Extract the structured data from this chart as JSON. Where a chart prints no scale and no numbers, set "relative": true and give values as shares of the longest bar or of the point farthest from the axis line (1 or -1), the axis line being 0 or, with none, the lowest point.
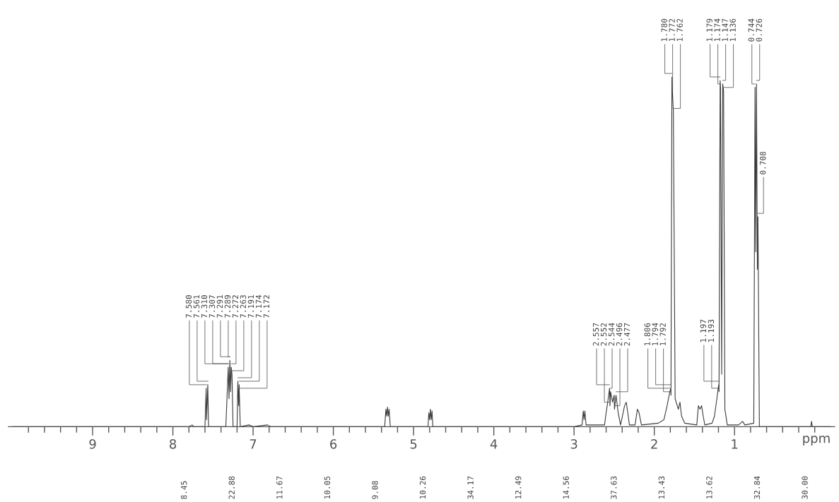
{
  "chart_data": {
    "type": "line",
    "relative": true,
    "xlabel": "ppm",
    "xlim": [
      10.05,
      -0.25
    ],
    "legend": false,
    "marker": "none",
    "line_style": "solid",
    "xticks": [
      {
        "value": 9.8,
        "label": null
      },
      {
        "value": 9.6,
        "label": null
      },
      {
        "value": 9.4,
        "label": null
      },
      {
        "value": 9.2,
        "label": null
      },
      9,
      {
        "value": 8.8,
        "label": null
      },
      {
        "value": 8.6,
        "label": null
      },
      {
        "value": 8.4,
        "label": null
      },
      {
        "value": 8.2,
        "label": null
      },
      8,
      {
        "value": 7.8,
        "label": null
      },
      {
        "value": 7.6,
        "label": null
      },
      {
        "value": 7.4,
        "label": null
      },
      {
        "value": 7.2,
        "label": null
      },
      7,
      {
        "value": 6.8,
        "label": null
      },
      {
        "value": 6.6,
        "label": null
      },
      {
        "value": 6.4,
        "label": null
      },
      {
        "value": 6.2,
        "label": null
      },
      6,
      {
        "value": 5.8,
        "label": null
      },
      {
        "value": 5.6,
        "label": null
      },
      {
        "value": 5.4,
        "label": null
      },
      {
        "value": 5.2,
        "label": null
      },
      5,
      {
        "value": 4.8,
        "label": null
      },
      {
        "value": 4.6,
        "label": null
      },
      {
        "value": 4.4,
        "label": null
      },
      {
        "value": 4.2,
        "label": null
      },
      4,
      {
        "value": 3.8,
        "label": null
      },
      {
        "value": 3.6,
        "label": null
      },
      {
        "value": 3.4,
        "label": null
      },
      {
        "value": 3.2,
        "label": null
      },
      3,
      {
        "value": 2.8,
        "label": null
      },
      {
        "value": 2.6,
        "label": null
      },
      {
        "value": 2.4,
        "label": null
      },
      {
        "value": 2.2,
        "label": null
      },
      2,
      {
        "value": 1.8,
        "label": null
      },
      {
        "value": 1.6,
        "label": null
      },
      {
        "value": 1.4,
        "label": null
      },
      {
        "value": 1.2,
        "label": null
      },
      1,
      {
        "value": 0.8,
        "label": null
      },
      {
        "value": 0.6,
        "label": null
      },
      {
        "value": 0.4,
        "label": null
      },
      {
        "value": 0.2,
        "label": null
      },
      {
        "value": 0,
        "label": null
      }
    ],
    "series": [
      {
        "color": "#3a3a3a",
        "x": [
          10.0,
          7.8,
          7.76,
          7.74,
          7.6,
          7.585,
          7.58,
          7.565,
          7.555,
          7.34,
          7.31,
          7.3,
          7.29,
          7.28,
          7.272,
          7.263,
          7.25,
          7.2,
          7.19,
          7.18,
          7.174,
          7.172,
          7.16,
          7.05,
          7.0,
          6.82,
          6.78,
          5.36,
          5.345,
          5.335,
          5.325,
          5.315,
          5.305,
          5.29,
          4.82,
          4.81,
          4.8,
          4.79,
          4.78,
          4.77,
          4.76,
          3.0,
          2.9,
          2.885,
          2.875,
          2.865,
          2.85,
          2.62,
          2.6,
          2.58,
          2.557,
          2.552,
          2.544,
          2.52,
          2.5,
          2.496,
          2.477,
          2.45,
          2.42,
          2.37,
          2.35,
          2.33,
          2.31,
          2.24,
          2.21,
          2.19,
          2.16,
          1.95,
          1.88,
          1.84,
          1.806,
          1.794,
          1.792,
          1.78,
          1.772,
          1.762,
          1.74,
          1.7,
          1.68,
          1.66,
          1.62,
          1.47,
          1.45,
          1.43,
          1.41,
          1.39,
          1.37,
          1.28,
          1.25,
          1.22,
          1.197,
          1.193,
          1.179,
          1.174,
          1.16,
          1.147,
          1.136,
          1.12,
          1.09,
          0.95,
          0.9,
          0.87,
          0.76,
          0.744,
          0.735,
          0.726,
          0.715,
          0.708,
          0.69,
          0.05,
          0.04,
          0.03,
          -0.2
        ],
        "values": [
          0,
          0,
          0.005,
          0,
          0,
          0.11,
          0.02,
          0.12,
          0,
          0,
          0.17,
          0.08,
          0.19,
          0.1,
          0.17,
          0.15,
          0,
          0,
          0.13,
          0.06,
          0.12,
          0.1,
          0,
          0.005,
          0,
          0.005,
          0,
          0,
          0.05,
          0.03,
          0.056,
          0.03,
          0.05,
          0,
          0,
          0.04,
          0.02,
          0.05,
          0.02,
          0.045,
          0,
          0,
          0.005,
          0.045,
          0.02,
          0.045,
          0.005,
          0.005,
          0.04,
          0.07,
          0.11,
          0.06,
          0.1,
          0.07,
          0.09,
          0.05,
          0.09,
          0.04,
          0.005,
          0.06,
          0.07,
          0.04,
          0.005,
          0.005,
          0.05,
          0.04,
          0.005,
          0.01,
          0.02,
          0.06,
          0.1,
          0.11,
          0.09,
          1.0,
          0.95,
          0.9,
          0.08,
          0.05,
          0.07,
          0.03,
          0.01,
          0.005,
          0.06,
          0.05,
          0.06,
          0.03,
          0.005,
          0.01,
          0.03,
          0.08,
          0.12,
          0.1,
          0.99,
          0.97,
          0.15,
          0.98,
          0.96,
          0.05,
          0.005,
          0.005,
          0.015,
          0.005,
          0.01,
          0.97,
          0.5,
          0.98,
          0.45,
          0.6,
          0,
          0,
          0.015,
          0,
          0
        ]
      }
    ],
    "annotations": [
      {
        "text": "7.580",
        "x": 7.58,
        "y": 0.11
      },
      {
        "text": "7.561",
        "x": 7.561,
        "y": 0.12
      },
      {
        "text": "7.310",
        "x": 7.31,
        "y": 0.17
      },
      {
        "text": "7.307",
        "x": 7.307,
        "y": 0.17
      },
      {
        "text": "7.291",
        "x": 7.291,
        "y": 0.19
      },
      {
        "text": "7.289",
        "x": 7.289,
        "y": 0.19
      },
      {
        "text": "7.272",
        "x": 7.272,
        "y": 0.17
      },
      {
        "text": "7.263",
        "x": 7.263,
        "y": 0.15
      },
      {
        "text": "7.191",
        "x": 7.191,
        "y": 0.13
      },
      {
        "text": "7.174",
        "x": 7.174,
        "y": 0.12
      },
      {
        "text": "7.172",
        "x": 7.172,
        "y": 0.1
      },
      {
        "text": "2.557",
        "x": 2.557,
        "y": 0.11
      },
      {
        "text": "2.552",
        "x": 2.552,
        "y": 0.06
      },
      {
        "text": "2.544",
        "x": 2.544,
        "y": 0.1
      },
      {
        "text": "2.496",
        "x": 2.496,
        "y": 0.05
      },
      {
        "text": "2.477",
        "x": 2.477,
        "y": 0.09
      },
      {
        "text": "1.806",
        "x": 1.806,
        "y": 0.1
      },
      {
        "text": "1.794",
        "x": 1.794,
        "y": 0.11
      },
      {
        "text": "1.792",
        "x": 1.792,
        "y": 0.09
      },
      {
        "text": "1.780",
        "x": 1.78,
        "y": 1.0
      },
      {
        "text": "1.772",
        "x": 1.772,
        "y": 0.95
      },
      {
        "text": "1.762",
        "x": 1.762,
        "y": 0.9
      },
      {
        "text": "1.197",
        "x": 1.197,
        "y": 0.12
      },
      {
        "text": "1.193",
        "x": 1.193,
        "y": 0.1
      },
      {
        "text": "1.179",
        "x": 1.179,
        "y": 0.99
      },
      {
        "text": "1.174",
        "x": 1.174,
        "y": 0.97
      },
      {
        "text": "1.147",
        "x": 1.147,
        "y": 0.98
      },
      {
        "text": "1.136",
        "x": 1.136,
        "y": 0.96
      },
      {
        "text": "0.744",
        "x": 0.744,
        "y": 0.97
      },
      {
        "text": "0.726",
        "x": 0.726,
        "y": 0.98
      },
      {
        "text": "0.708",
        "x": 0.708,
        "y": 0.6
      },
      "8.45",
      "22.88",
      "11.67",
      "10.05",
      "9.08",
      "10.26",
      "34.17",
      "12.49",
      "14.56",
      "37.63",
      "13.43",
      "13.62",
      "32.84",
      "30.00"
    ],
    "grid": false
  }
}
